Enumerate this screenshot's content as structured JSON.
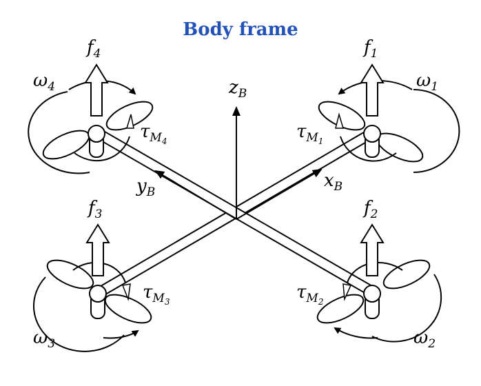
{
  "title": "Body frame",
  "colors": {
    "title": "#2251b8",
    "ink": "#000000"
  },
  "axes": {
    "z": {
      "base": "z",
      "sub": "B"
    },
    "x": {
      "base": "x",
      "sub": "B"
    },
    "y": {
      "base": "y",
      "sub": "B"
    }
  },
  "rotors": [
    {
      "force": {
        "base": "f",
        "sub": "1"
      },
      "speed": {
        "base": "ω",
        "sub": "1"
      },
      "torque": {
        "base": "τ",
        "sub": "M",
        "subsub": "1"
      }
    },
    {
      "force": {
        "base": "f",
        "sub": "2"
      },
      "speed": {
        "base": "ω",
        "sub": "2"
      },
      "torque": {
        "base": "τ",
        "sub": "M",
        "subsub": "2"
      }
    },
    {
      "force": {
        "base": "f",
        "sub": "3"
      },
      "speed": {
        "base": "ω",
        "sub": "3"
      },
      "torque": {
        "base": "τ",
        "sub": "M",
        "subsub": "3"
      }
    },
    {
      "force": {
        "base": "f",
        "sub": "4"
      },
      "speed": {
        "base": "ω",
        "sub": "4"
      },
      "torque": {
        "base": "τ",
        "sub": "M",
        "subsub": "4"
      }
    }
  ]
}
